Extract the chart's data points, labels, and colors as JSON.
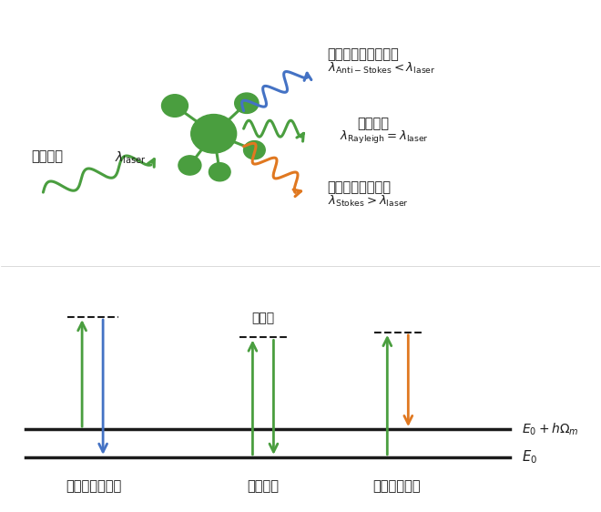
{
  "green_color": "#4a9e3f",
  "blue_color": "#4472c4",
  "orange_color": "#e07820",
  "black_color": "#1a1a1a",
  "bg_color": "#ffffff",
  "fig_width": 6.6,
  "fig_height": 5.62,
  "dpi": 100,
  "top_label_antistokes_cn": "反斯托克斯拉曼散射",
  "top_label_rayleigh_cn": "瑞利散射",
  "top_label_stokes_cn": "斯托克斯拉曼散射",
  "incident_cn": "入射光子",
  "virtual_cn": "虚能级",
  "bottom_antistokes_cn": "反斯托克斯散射",
  "bottom_rayleigh_cn": "瑞利散射",
  "bottom_stokes_cn": "斯托克斯散射"
}
